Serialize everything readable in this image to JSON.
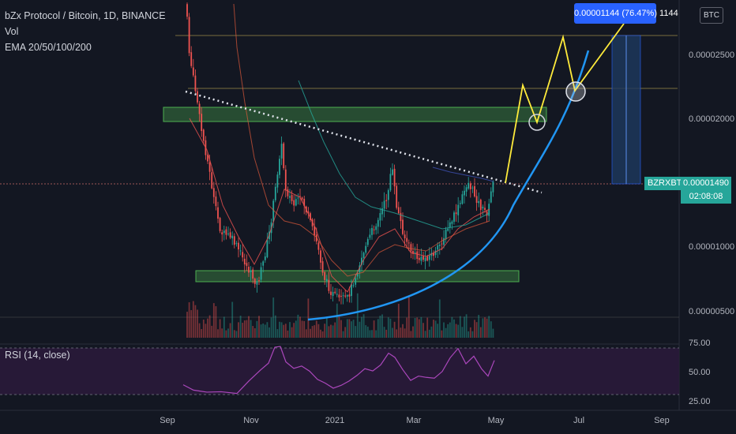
{
  "legend": {
    "symbol": "bZx Protocol / Bitcoin, 1D, BINANCE",
    "vol": "Vol",
    "ema": "EMA 20/50/100/200"
  },
  "rsi": {
    "label": "RSI (14, close)",
    "levels": [
      "75.00",
      "50.00",
      "25.00"
    ]
  },
  "currency_button": "BTC",
  "measure_label": "0.00001144 (76.47%) 1144",
  "price_axis": [
    "0.00002500",
    "0.00002000",
    "0.00001000",
    "0.00000500"
  ],
  "ticker_label": "BZRXBTC",
  "last_price": "0.00001490",
  "countdown": "02:08:08",
  "time_axis": [
    "Sep",
    "Nov",
    "2021",
    "Mar",
    "May",
    "Jul",
    "Sep"
  ],
  "colors": {
    "background": "#131722",
    "up": "#26a69a",
    "down": "#ef5350",
    "projection": "#ffeb3b",
    "curve": "#2196f3",
    "zone": "#4caf50",
    "rsi": "#ab47bc"
  }
}
